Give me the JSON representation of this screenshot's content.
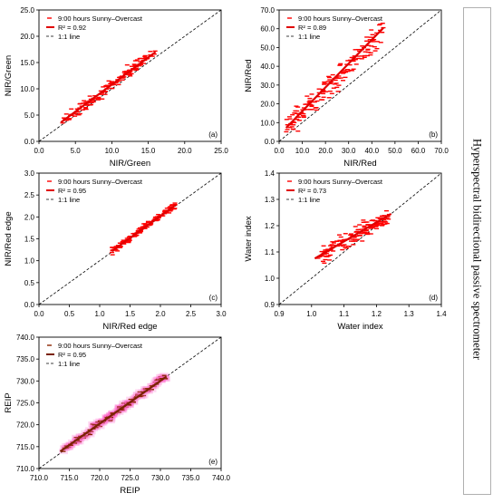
{
  "side_title": "Hyperspectral bidirectional passive spectrometer",
  "chart_data": [
    {
      "type": "scatter",
      "panel_label": "(a)",
      "xlabel": "NIR/Green",
      "ylabel": "NIR/Green",
      "xlim": [
        0,
        25
      ],
      "ylim": [
        0,
        25
      ],
      "xticks": [
        "0.0",
        "5.0",
        "10.0",
        "15.0",
        "20.0",
        "25.0"
      ],
      "yticks": [
        "0.0",
        "5.0",
        "10.0",
        "15.0",
        "20.0",
        "25.0"
      ],
      "legend_position": "top-left",
      "legend": {
        "series": "9:00 hours Sunny–Overcast",
        "fit": "R² = 0.92",
        "identity": "1:1 line"
      },
      "marker_color": "#ff0000",
      "fit_color": "#e00000",
      "highlight_color": "#ff0000",
      "points": {
        "x_range": [
          3,
          16
        ],
        "slope": 1.03,
        "intercept": 0.5,
        "scatter_sd": 0.8,
        "count": 150
      },
      "fit_line": {
        "x": [
          3,
          16
        ],
        "y": [
          3.6,
          17.0
        ]
      },
      "identity_line": {
        "x": [
          0,
          25
        ],
        "y": [
          0,
          25
        ]
      }
    },
    {
      "type": "scatter",
      "panel_label": "(b)",
      "xlabel": "NIR/Red",
      "ylabel": "NIR/Red",
      "xlim": [
        0,
        70
      ],
      "ylim": [
        0,
        70
      ],
      "xticks": [
        "0.0",
        "10.0",
        "20.0",
        "30.0",
        "40.0",
        "50.0",
        "60.0",
        "70.0"
      ],
      "yticks": [
        "0.0",
        "10.0",
        "20.0",
        "30.0",
        "40.0",
        "50.0",
        "60.0",
        "70.0"
      ],
      "legend_position": "top-left",
      "legend": {
        "series": "9:00 hours Sunny–Overcast",
        "fit": "R² = 0.89",
        "identity": "1:1 line"
      },
      "marker_color": "#ff0000",
      "fit_color": "#e00000",
      "highlight_color": "#ff0000",
      "points": {
        "x_range": [
          3,
          45
        ],
        "slope": 1.22,
        "intercept": 3.5,
        "scatter_sd": 4.5,
        "count": 170
      },
      "fit_line": {
        "x": [
          3,
          45
        ],
        "y": [
          7.2,
          60.5
        ]
      },
      "identity_line": {
        "x": [
          0,
          70
        ],
        "y": [
          0,
          70
        ]
      }
    },
    {
      "type": "scatter",
      "panel_label": "(c)",
      "xlabel": "NIR/Red edge",
      "ylabel": "NIR/Red edge",
      "xlim": [
        0,
        3
      ],
      "ylim": [
        0,
        3
      ],
      "xticks": [
        "0.0",
        "0.5",
        "1.0",
        "1.5",
        "2.0",
        "2.5",
        "3.0"
      ],
      "yticks": [
        "0.0",
        "0.5",
        "1.0",
        "1.5",
        "2.0",
        "2.5",
        "3.0"
      ],
      "legend_position": "top-left",
      "legend": {
        "series": "9:00 hours Sunny–Overcast",
        "fit": "R² = 0.95",
        "identity": "1:1 line"
      },
      "marker_color": "#ff0000",
      "fit_color": "#e00000",
      "highlight_color": "#ff0000",
      "points": {
        "x_range": [
          1.2,
          2.25
        ],
        "slope": 1.0,
        "intercept": 0.02,
        "scatter_sd": 0.05,
        "count": 140
      },
      "fit_line": {
        "x": [
          1.2,
          2.25
        ],
        "y": [
          1.22,
          2.27
        ]
      },
      "identity_line": {
        "x": [
          0,
          3
        ],
        "y": [
          0,
          3
        ]
      }
    },
    {
      "type": "scatter",
      "panel_label": "(d)",
      "xlabel": "Water index",
      "ylabel": "Water index",
      "xlim": [
        0.9,
        1.4
      ],
      "ylim": [
        0.9,
        1.4
      ],
      "xticks": [
        "0.9",
        "1.0",
        "1.1",
        "1.2",
        "1.3",
        "1.4"
      ],
      "yticks": [
        "0.9",
        "1.0",
        "1.1",
        "1.2",
        "1.3",
        "1.4"
      ],
      "legend_position": "top-left",
      "legend": {
        "series": "9:00 hours Sunny–Overcast",
        "fit": "R² = 0.73",
        "identity": "1:1 line"
      },
      "marker_color": "#ff0000",
      "fit_color": "#e00000",
      "highlight_color": "#ff0000",
      "points": {
        "x_range": [
          1.02,
          1.24
        ],
        "slope": 0.72,
        "intercept": 0.345,
        "scatter_sd": 0.022,
        "count": 160
      },
      "fit_line": {
        "x": [
          1.01,
          1.245
        ],
        "y": [
          1.075,
          1.245
        ]
      },
      "identity_line": {
        "x": [
          0.9,
          1.4
        ],
        "y": [
          0.9,
          1.4
        ]
      }
    },
    {
      "type": "scatter",
      "panel_label": "(e)",
      "xlabel": "REIP",
      "ylabel": "REIP",
      "xlim": [
        710,
        740
      ],
      "ylim": [
        710,
        740
      ],
      "xticks": [
        "710.0",
        "715.0",
        "720.0",
        "725.0",
        "730.0",
        "735.0",
        "740.0"
      ],
      "yticks": [
        "710.0",
        "715.0",
        "720.0",
        "725.0",
        "730.0",
        "735.0",
        "740.0"
      ],
      "legend_position": "top-left",
      "legend": {
        "series": "9:00 hours Sunny–Overcast",
        "fit": "R² = 0.95",
        "identity": "1:1 line"
      },
      "marker_color": "#8b2500",
      "fit_color": "#7a2200",
      "highlight_color": "#ff66cc",
      "points": {
        "x_range": [
          714,
          731
        ],
        "slope": 1.0,
        "intercept": 0.2,
        "scatter_sd": 0.55,
        "count": 150
      },
      "fit_line": {
        "x": [
          713.5,
          731
        ],
        "y": [
          713.9,
          731.0
        ]
      },
      "identity_line": {
        "x": [
          710,
          740
        ],
        "y": [
          710,
          740
        ]
      }
    }
  ]
}
